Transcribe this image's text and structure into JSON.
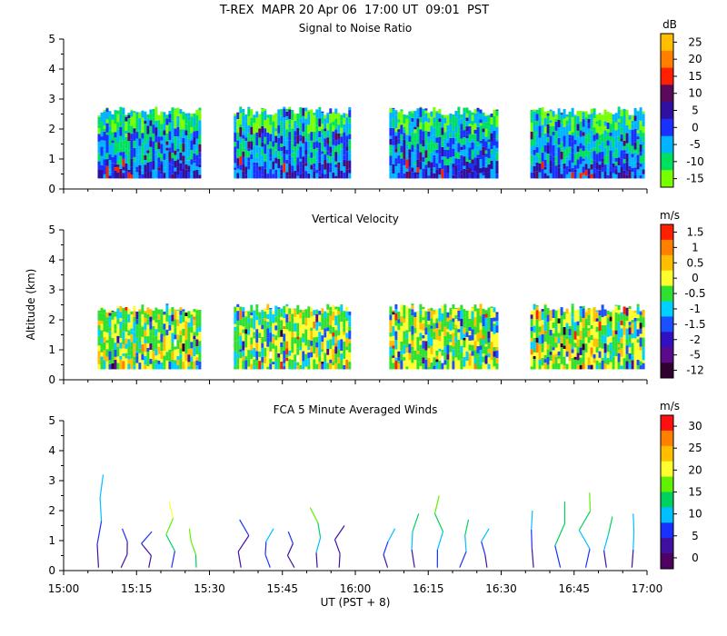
{
  "figure": {
    "title": "T-REX  MAPR 20 Apr 06  17:00 UT  09:01  PST",
    "xlabel": "UT  (PST + 8)",
    "ylabel": "Altitude (km)"
  },
  "chart_data": [
    {
      "type": "heatmap",
      "title": "Signal to Noise Ratio",
      "colorbar_unit": "dB",
      "colorbar_ticks": [
        "25",
        "20",
        "15",
        "10",
        "5",
        "0",
        "-5",
        "-10",
        "-15"
      ],
      "colorbar_colors": [
        "#ffbe00",
        "#ff7f00",
        "#ff2000",
        "#5a0a5a",
        "#3010a0",
        "#1a30ff",
        "#00b4ff",
        "#00e060",
        "#78ff00"
      ],
      "x_ticks": [
        "15:00",
        "15:15",
        "15:30",
        "15:45",
        "16:00",
        "16:15",
        "16:30",
        "16:45",
        "17:00"
      ],
      "y_ticks": [
        "0",
        "1",
        "2",
        "3",
        "4",
        "5"
      ],
      "ylim": [
        0,
        5
      ],
      "xlim": [
        "15:00",
        "17:00"
      ],
      "data_segments": [
        [
          "15:07",
          "15:28"
        ],
        [
          "15:35",
          "15:59"
        ],
        [
          "16:07",
          "16:29"
        ],
        [
          "16:36",
          "16:59"
        ]
      ],
      "echo_top_km": 2.6
    },
    {
      "type": "heatmap",
      "title": "Vertical Velocity",
      "colorbar_unit": "m/s",
      "colorbar_ticks": [
        "1.5",
        "1",
        "0.5",
        "0",
        "-0.5",
        "-1",
        "-1.5",
        "-2",
        "-5",
        "-12"
      ],
      "colorbar_colors": [
        "#ff2000",
        "#ff7f00",
        "#ffbe00",
        "#ffff30",
        "#30e030",
        "#00d0ff",
        "#1a50ff",
        "#3010c0",
        "#5a0a8a",
        "#300030"
      ],
      "x_ticks": [
        "15:00",
        "15:15",
        "15:30",
        "15:45",
        "16:00",
        "16:15",
        "16:30",
        "16:45",
        "17:00"
      ],
      "y_ticks": [
        "0",
        "1",
        "2",
        "3",
        "4",
        "5"
      ],
      "ylim": [
        0,
        5
      ],
      "xlim": [
        "15:00",
        "17:00"
      ],
      "data_segments": [
        [
          "15:07",
          "15:28"
        ],
        [
          "15:35",
          "15:59"
        ],
        [
          "16:07",
          "16:29"
        ],
        [
          "16:36",
          "16:59"
        ]
      ],
      "echo_top_km": 2.4
    },
    {
      "type": "scatter",
      "title": "FCA 5 Minute Averaged Winds",
      "colorbar_unit": "m/s",
      "colorbar_ticks": [
        "30",
        "25",
        "20",
        "15",
        "10",
        "5",
        "0"
      ],
      "colorbar_colors": [
        "#ff1010",
        "#ff7f00",
        "#ffbe00",
        "#ffff30",
        "#60f000",
        "#00d060",
        "#00c0ff",
        "#1a30ff",
        "#4010a0",
        "#500060"
      ],
      "x_ticks": [
        "15:00",
        "15:15",
        "15:30",
        "15:45",
        "16:00",
        "16:15",
        "16:30",
        "16:45",
        "17:00"
      ],
      "y_ticks": [
        "0",
        "1",
        "2",
        "3",
        "4",
        "5"
      ],
      "ylim": [
        0,
        5
      ],
      "xlim": [
        "15:00",
        "17:00"
      ],
      "wind_profiles": [
        {
          "time": "15:07",
          "top_km": 3.2,
          "speed": [
            5,
            8,
            10,
            10
          ]
        },
        {
          "time": "15:12",
          "top_km": 1.4,
          "speed": [
            3,
            5,
            6
          ]
        },
        {
          "time": "15:17",
          "top_km": 1.3,
          "speed": [
            2,
            4,
            6
          ]
        },
        {
          "time": "15:22",
          "top_km": 2.3,
          "speed": [
            8,
            12,
            18,
            20
          ]
        },
        {
          "time": "15:27",
          "top_km": 1.4,
          "speed": [
            14,
            16,
            18
          ]
        },
        {
          "time": "15:37",
          "top_km": 1.7,
          "speed": [
            3,
            4,
            6
          ]
        },
        {
          "time": "15:42",
          "top_km": 1.4,
          "speed": [
            6,
            8,
            9
          ]
        },
        {
          "time": "15:47",
          "top_km": 1.3,
          "speed": [
            3,
            5,
            7
          ]
        },
        {
          "time": "15:52",
          "top_km": 2.1,
          "speed": [
            5,
            9,
            13,
            16
          ]
        },
        {
          "time": "15:57",
          "top_km": 1.5,
          "speed": [
            2,
            3,
            4
          ]
        },
        {
          "time": "16:07",
          "top_km": 1.4,
          "speed": [
            3,
            7,
            11
          ]
        },
        {
          "time": "16:12",
          "top_km": 1.9,
          "speed": [
            5,
            9,
            12
          ]
        },
        {
          "time": "16:17",
          "top_km": 2.5,
          "speed": [
            6,
            10,
            14,
            17
          ]
        },
        {
          "time": "16:22",
          "top_km": 1.7,
          "speed": [
            7,
            11,
            14
          ]
        },
        {
          "time": "16:27",
          "top_km": 1.4,
          "speed": [
            4,
            8,
            10
          ]
        },
        {
          "time": "16:37",
          "top_km": 2.0,
          "speed": [
            3,
            8,
            10
          ]
        },
        {
          "time": "16:42",
          "top_km": 2.3,
          "speed": [
            6,
            12,
            14
          ]
        },
        {
          "time": "16:47",
          "top_km": 2.6,
          "speed": [
            8,
            10,
            14,
            16
          ]
        },
        {
          "time": "16:52",
          "top_km": 1.8,
          "speed": [
            4,
            9,
            12
          ]
        },
        {
          "time": "16:57",
          "top_km": 1.9,
          "speed": [
            3,
            9,
            10
          ]
        }
      ]
    }
  ]
}
